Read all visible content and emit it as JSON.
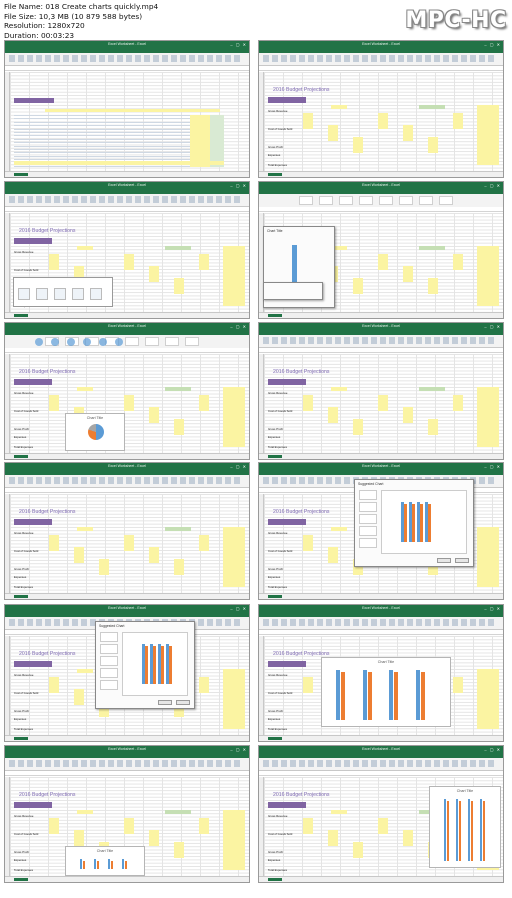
{
  "header": {
    "file_name": "File Name: 018 Create charts quickly.mp4",
    "file_size": "File Size: 10,3 MB (10 879 588 bytes)",
    "resolution": "Resolution: 1280x720",
    "duration": "Duration: 00:03:23",
    "watermark": "MPC-HC"
  },
  "app": {
    "window_title": "Excel Worksheet - Excel",
    "sheet_title": "2016 Budget Projections",
    "chart_title": "Chart Title",
    "dialog_title": "Suggested Chart",
    "row_labels": {
      "gross_revenue": "Gross Revenue",
      "cost_of_goods": "Cost of Goods Sold",
      "gross_profit": "Gross Profit",
      "expenses": "Expenses",
      "total": "Total Expenses"
    }
  },
  "colors": {
    "excel_green": "#217346",
    "title_purple": "#7f6bb3",
    "header_purple": "#8064a2",
    "highlight_yellow": "#fbf4a2",
    "highlight_green": "#c5dfb4",
    "bar_blue": "#5b9bd5",
    "bar_orange": "#ed7d31"
  }
}
